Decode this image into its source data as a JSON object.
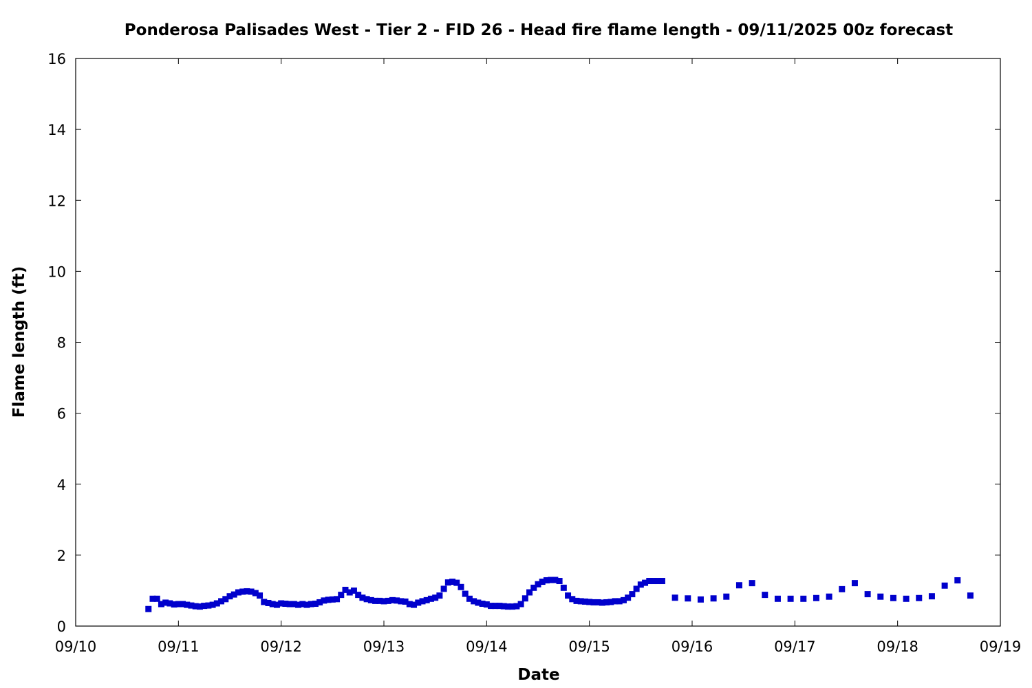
{
  "chart_data": {
    "type": "scatter",
    "title": "Ponderosa Palisades West - Tier 2 - FID 26 - Head fire flame length - 09/11/2025 00z forecast",
    "xlabel": "Date",
    "ylabel": "Flame length (ft)",
    "xlim": [
      "09/10",
      "09/19"
    ],
    "ylim": [
      0,
      16
    ],
    "x_tick_labels": [
      "09/10",
      "09/11",
      "09/12",
      "09/13",
      "09/14",
      "09/15",
      "09/16",
      "09/17",
      "09/18",
      "09/19"
    ],
    "y_tick_labels": [
      "0",
      "2",
      "4",
      "6",
      "8",
      "10",
      "12",
      "14",
      "16"
    ],
    "grid": false,
    "legend": "none",
    "marker": "square",
    "color": "#0000cc",
    "series": [
      {
        "x_unit": "date-time (2025-09)",
        "x": [
          "09/10 17:00",
          "09/10 18:00",
          "09/10 19:00",
          "09/10 20:00",
          "09/10 21:00",
          "09/10 22:00",
          "09/10 23:00",
          "09/11 00:00",
          "09/11 01:00",
          "09/11 02:00",
          "09/11 03:00",
          "09/11 04:00",
          "09/11 05:00",
          "09/11 06:00",
          "09/11 07:00",
          "09/11 08:00",
          "09/11 09:00",
          "09/11 10:00",
          "09/11 11:00",
          "09/11 12:00",
          "09/11 13:00",
          "09/11 14:00",
          "09/11 15:00",
          "09/11 16:00",
          "09/11 17:00",
          "09/11 18:00",
          "09/11 19:00",
          "09/11 20:00",
          "09/11 21:00",
          "09/11 22:00",
          "09/11 23:00",
          "09/12 00:00",
          "09/12 01:00",
          "09/12 02:00",
          "09/12 03:00",
          "09/12 04:00",
          "09/12 05:00",
          "09/12 06:00",
          "09/12 07:00",
          "09/12 08:00",
          "09/12 09:00",
          "09/12 10:00",
          "09/12 11:00",
          "09/12 12:00",
          "09/12 13:00",
          "09/12 14:00",
          "09/12 15:00",
          "09/12 16:00",
          "09/12 17:00",
          "09/12 18:00",
          "09/12 19:00",
          "09/12 20:00",
          "09/12 21:00",
          "09/12 22:00",
          "09/12 23:00",
          "09/13 00:00",
          "09/13 01:00",
          "09/13 02:00",
          "09/13 03:00",
          "09/13 04:00",
          "09/13 05:00",
          "09/13 06:00",
          "09/13 07:00",
          "09/13 08:00",
          "09/13 09:00",
          "09/13 10:00",
          "09/13 11:00",
          "09/13 12:00",
          "09/13 13:00",
          "09/13 14:00",
          "09/13 15:00",
          "09/13 16:00",
          "09/13 17:00",
          "09/13 18:00",
          "09/13 19:00",
          "09/13 20:00",
          "09/13 21:00",
          "09/13 22:00",
          "09/13 23:00",
          "09/14 00:00",
          "09/14 01:00",
          "09/14 02:00",
          "09/14 03:00",
          "09/14 04:00",
          "09/14 05:00",
          "09/14 06:00",
          "09/14 07:00",
          "09/14 08:00",
          "09/14 09:00",
          "09/14 10:00",
          "09/14 11:00",
          "09/14 12:00",
          "09/14 13:00",
          "09/14 14:00",
          "09/14 15:00",
          "09/14 16:00",
          "09/14 17:00",
          "09/14 18:00",
          "09/14 19:00",
          "09/14 20:00",
          "09/14 21:00",
          "09/14 22:00",
          "09/14 23:00",
          "09/15 00:00",
          "09/15 01:00",
          "09/15 02:00",
          "09/15 03:00",
          "09/15 04:00",
          "09/15 05:00",
          "09/15 06:00",
          "09/15 07:00",
          "09/15 08:00",
          "09/15 09:00",
          "09/15 10:00",
          "09/15 11:00",
          "09/15 12:00",
          "09/15 13:00",
          "09/15 14:00",
          "09/15 15:00",
          "09/15 16:00",
          "09/15 17:00",
          "09/15 20:00",
          "09/15 23:00",
          "09/16 02:00",
          "09/16 05:00",
          "09/16 08:00",
          "09/16 11:00",
          "09/16 14:00",
          "09/16 17:00",
          "09/16 20:00",
          "09/16 23:00",
          "09/17 02:00",
          "09/17 05:00",
          "09/17 08:00",
          "09/17 11:00",
          "09/17 14:00",
          "09/17 17:00",
          "09/17 20:00",
          "09/17 23:00",
          "09/18 02:00",
          "09/18 05:00",
          "09/18 08:00",
          "09/18 11:00",
          "09/18 14:00",
          "09/18 17:00"
        ],
        "y": [
          0.48,
          0.77,
          0.77,
          0.62,
          0.66,
          0.64,
          0.61,
          0.62,
          0.62,
          0.6,
          0.58,
          0.56,
          0.55,
          0.57,
          0.58,
          0.6,
          0.64,
          0.7,
          0.76,
          0.84,
          0.89,
          0.95,
          0.97,
          0.98,
          0.97,
          0.93,
          0.86,
          0.68,
          0.65,
          0.62,
          0.6,
          0.64,
          0.63,
          0.62,
          0.62,
          0.6,
          0.62,
          0.6,
          0.62,
          0.63,
          0.67,
          0.72,
          0.74,
          0.75,
          0.76,
          0.88,
          1.02,
          0.95,
          1.0,
          0.88,
          0.8,
          0.76,
          0.73,
          0.71,
          0.71,
          0.7,
          0.71,
          0.73,
          0.72,
          0.7,
          0.69,
          0.62,
          0.6,
          0.66,
          0.7,
          0.73,
          0.77,
          0.8,
          0.86,
          1.05,
          1.23,
          1.25,
          1.22,
          1.1,
          0.91,
          0.77,
          0.7,
          0.66,
          0.63,
          0.61,
          0.57,
          0.57,
          0.57,
          0.56,
          0.55,
          0.55,
          0.56,
          0.62,
          0.78,
          0.95,
          1.08,
          1.18,
          1.25,
          1.29,
          1.3,
          1.3,
          1.27,
          1.08,
          0.86,
          0.76,
          0.71,
          0.7,
          0.69,
          0.68,
          0.67,
          0.67,
          0.66,
          0.67,
          0.68,
          0.7,
          0.7,
          0.73,
          0.8,
          0.9,
          1.05,
          1.17,
          1.22,
          1.27,
          1.27,
          1.27,
          1.27,
          0.8,
          0.78,
          0.75,
          0.78,
          0.83,
          1.15,
          1.21,
          0.88,
          0.77,
          0.77,
          0.77,
          0.79,
          0.83,
          1.04,
          1.21,
          0.9,
          0.83,
          0.79,
          0.77,
          0.79,
          0.84,
          1.14,
          1.29,
          0.86
        ]
      }
    ]
  }
}
